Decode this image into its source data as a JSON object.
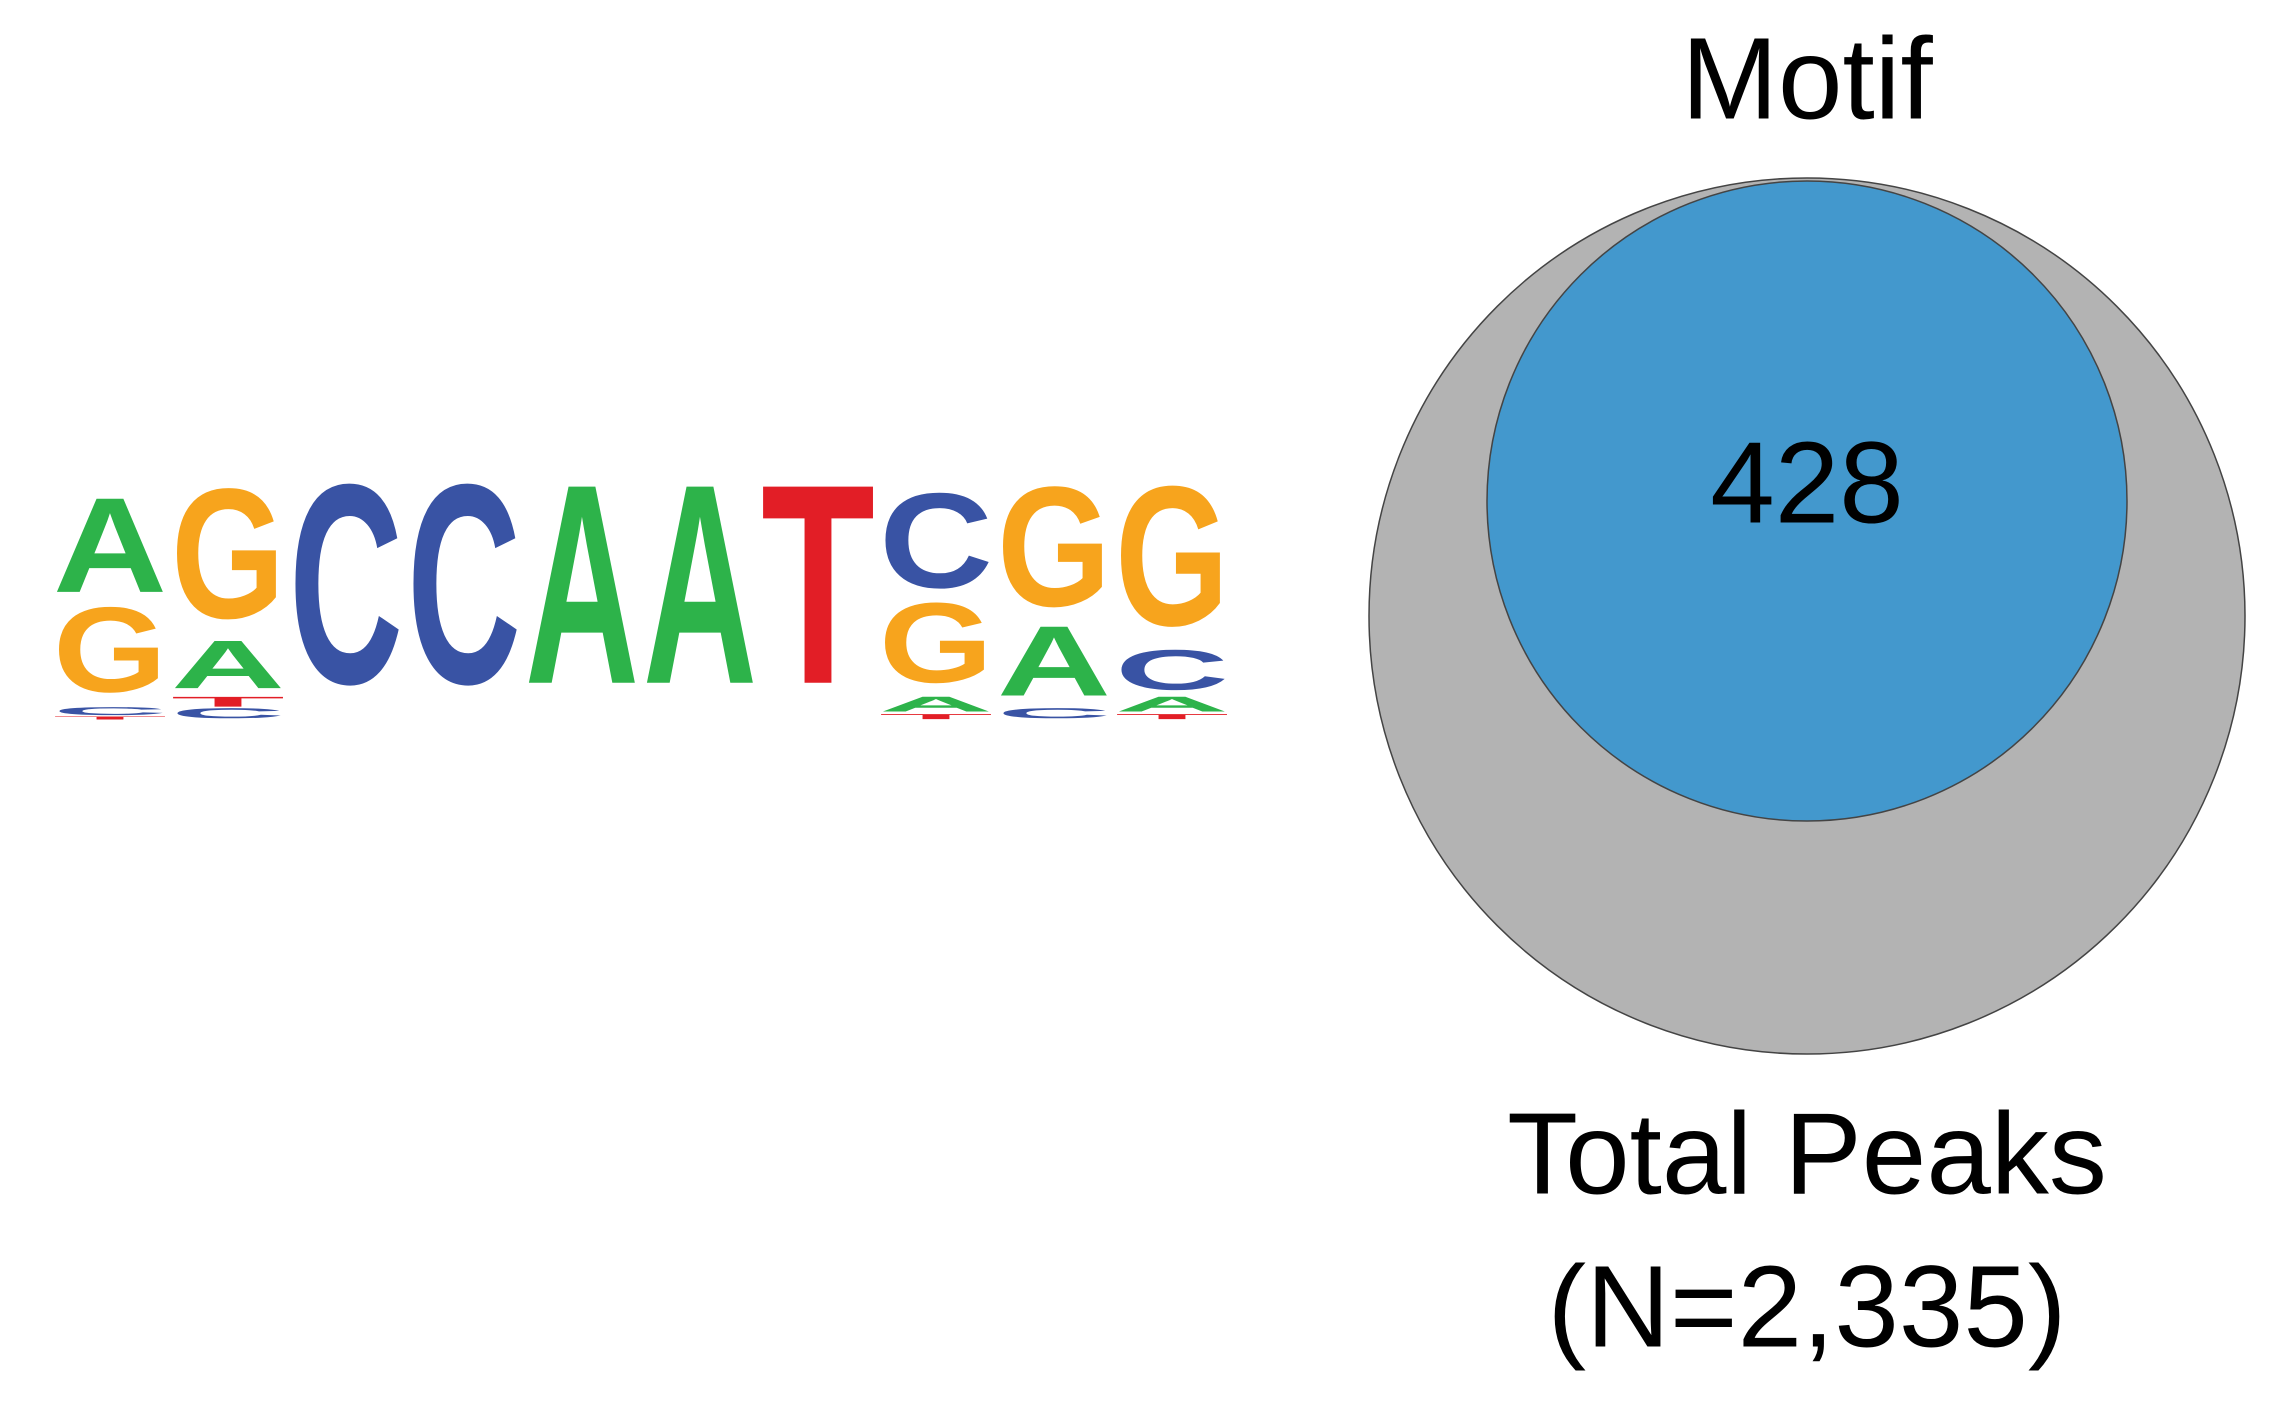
{
  "logo": {
    "colors": {
      "A": "#2db34a",
      "C": "#3953a4",
      "G": "#f7a41d",
      "T": "#e21e26"
    },
    "positions": [
      {
        "letters": [
          {
            "letter": "T",
            "height": 0.03
          },
          {
            "letter": "C",
            "height": 0.08
          },
          {
            "letter": "G",
            "height": 0.85
          },
          {
            "letter": "A",
            "height": 0.95
          }
        ]
      },
      {
        "letters": [
          {
            "letter": "C",
            "height": 0.1
          },
          {
            "letter": "T",
            "height": 0.1
          },
          {
            "letter": "A",
            "height": 0.48
          },
          {
            "letter": "G",
            "height": 1.3
          }
        ]
      },
      {
        "letters": [
          {
            "letter": "C",
            "height": 2.0
          }
        ]
      },
      {
        "letters": [
          {
            "letter": "C",
            "height": 2.0
          }
        ]
      },
      {
        "letters": [
          {
            "letter": "A",
            "height": 2.0
          }
        ]
      },
      {
        "letters": [
          {
            "letter": "A",
            "height": 2.0
          }
        ]
      },
      {
        "letters": [
          {
            "letter": "T",
            "height": 2.0
          }
        ]
      },
      {
        "letters": [
          {
            "letter": "T",
            "height": 0.05
          },
          {
            "letter": "A",
            "height": 0.15
          },
          {
            "letter": "G",
            "height": 0.8
          },
          {
            "letter": "C",
            "height": 0.95
          }
        ]
      },
      {
        "letters": [
          {
            "letter": "C",
            "height": 0.1
          },
          {
            "letter": "A",
            "height": 0.7
          },
          {
            "letter": "G",
            "height": 1.2
          }
        ]
      },
      {
        "letters": [
          {
            "letter": "T",
            "height": 0.05
          },
          {
            "letter": "A",
            "height": 0.15
          },
          {
            "letter": "C",
            "height": 0.4
          },
          {
            "letter": "G",
            "height": 1.4
          }
        ]
      }
    ]
  },
  "venn": {
    "inner_label": "Motif",
    "inner_count": "428",
    "outer_label": "Total Peaks",
    "outer_count": "(N=2,335)"
  }
}
